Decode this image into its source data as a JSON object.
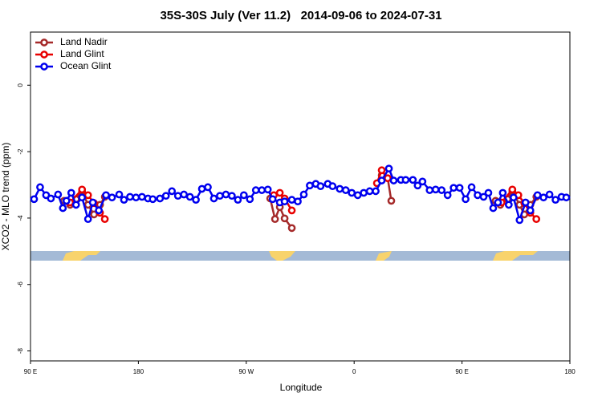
{
  "chart_data": {
    "type": "line",
    "title": "35S-30S July (Ver 11.2)   2014-09-06 to 2024-07-31",
    "xlabel": "Longitude",
    "ylabel": "XCO2 - MLO trend (ppm)",
    "xlim": [
      90,
      540
    ],
    "ylim": [
      -8.3,
      1.6
    ],
    "xticks": [
      {
        "value": 90,
        "label": "90 E"
      },
      180,
      {
        "value": 270,
        "label": "90 W"
      },
      {
        "value": 360,
        "label": "0"
      },
      {
        "value": 450,
        "label": "90 E"
      },
      {
        "value": 540,
        "label": "180"
      }
    ],
    "yticks": [
      0,
      -2,
      -4,
      -6,
      -8
    ],
    "legend": "topleft",
    "series": [
      {
        "name": "Land Nadir",
        "color": "#a52a2a",
        "x": [
          118,
          123,
          128,
          133,
          138,
          143,
          148,
          152,
          null,
          290,
          294,
          298,
          302,
          308,
          null,
          383,
          388,
          391,
          null,
          478,
          482,
          488,
          492,
          498,
          502,
          507,
          512
        ],
        "values": [
          -3.48,
          -3.6,
          -3.43,
          -3.19,
          -3.6,
          -3.89,
          -3.6,
          -3.36,
          null,
          -3.41,
          -4.03,
          -3.67,
          -4.01,
          -4.3,
          null,
          -2.71,
          -2.8,
          -3.48,
          null,
          -3.48,
          -3.6,
          -3.43,
          -3.19,
          -3.6,
          -3.89,
          -3.6,
          -3.36
        ]
      },
      {
        "name": "Land Glint",
        "color": "#e80000",
        "x": [
          123,
          133,
          138,
          143,
          148,
          152,
          null,
          293,
          298,
          302,
          308,
          null,
          379,
          383,
          388,
          null,
          483,
          492,
          497,
          502,
          507,
          512
        ],
        "values": [
          -3.53,
          -3.14,
          -3.31,
          -3.55,
          -3.84,
          -4.03,
          null,
          -3.31,
          -3.24,
          -3.41,
          -3.77,
          null,
          -2.95,
          -2.56,
          -2.8,
          null,
          -3.53,
          -3.14,
          -3.31,
          -3.55,
          -3.84,
          -4.03
        ]
      },
      {
        "name": "Ocean Glint",
        "color": "#0000ee",
        "x": [
          93,
          98,
          103,
          107,
          113,
          117,
          120,
          124,
          128,
          133,
          138,
          142,
          147,
          153,
          158,
          164,
          168,
          173,
          178,
          183,
          188,
          192,
          198,
          203,
          208,
          213,
          218,
          223,
          228,
          233,
          238,
          243,
          248,
          253,
          258,
          263,
          268,
          273,
          278,
          283,
          288,
          292,
          298,
          302,
          308,
          313,
          318,
          323,
          328,
          332,
          338,
          342,
          348,
          353,
          358,
          363,
          368,
          373,
          378,
          383,
          389,
          393,
          399,
          403,
          409,
          413,
          417,
          423,
          428,
          433,
          438,
          443,
          448,
          453,
          458,
          463,
          468,
          472,
          476,
          480,
          484,
          489,
          493,
          498,
          503,
          507,
          513,
          518,
          523,
          528,
          533,
          537
        ],
        "values": [
          -3.43,
          -3.07,
          -3.31,
          -3.41,
          -3.29,
          -3.7,
          -3.48,
          -3.24,
          -3.6,
          -3.38,
          -4.03,
          -3.53,
          -3.77,
          -3.31,
          -3.38,
          -3.29,
          -3.45,
          -3.36,
          -3.38,
          -3.36,
          -3.41,
          -3.43,
          -3.41,
          -3.33,
          -3.19,
          -3.33,
          -3.29,
          -3.36,
          -3.45,
          -3.12,
          -3.07,
          -3.41,
          -3.33,
          -3.29,
          -3.33,
          -3.45,
          -3.31,
          -3.43,
          -3.16,
          -3.16,
          -3.14,
          -3.43,
          -3.53,
          -3.5,
          -3.45,
          -3.5,
          -3.29,
          -3.02,
          -2.97,
          -3.04,
          -2.97,
          -3.04,
          -3.12,
          -3.16,
          -3.24,
          -3.31,
          -3.24,
          -3.19,
          -3.19,
          -2.87,
          -2.51,
          -2.87,
          -2.85,
          -2.85,
          -2.85,
          -3.02,
          -2.9,
          -3.16,
          -3.14,
          -3.16,
          -3.31,
          -3.09,
          -3.09,
          -3.43,
          -3.07,
          -3.31,
          -3.36,
          -3.24,
          -3.7,
          -3.53,
          -3.24,
          -3.6,
          -3.38,
          -4.06,
          -3.53,
          -3.77,
          -3.31,
          -3.38,
          -3.29,
          -3.45,
          -3.36,
          -3.38
        ]
      }
    ]
  }
}
